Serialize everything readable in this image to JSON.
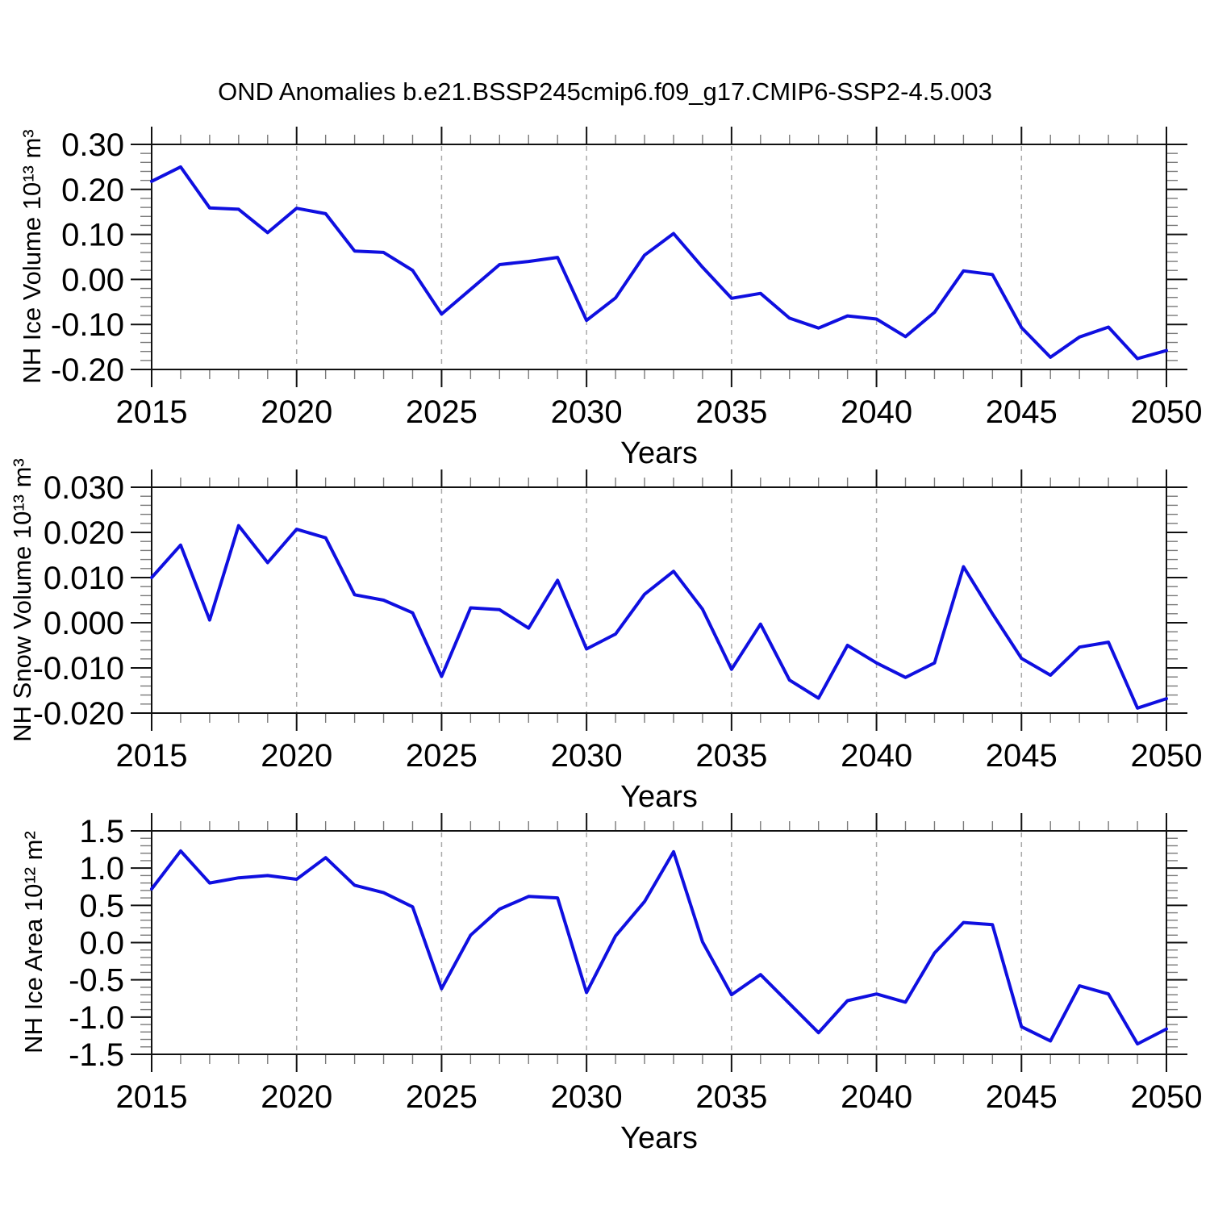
{
  "figure": {
    "title": "OND Anomalies b.e21.BSSP245cmip6.f09_g17.CMIP6-SSP2-4.5.003",
    "background_color": "#ffffff",
    "line_color": "#0f0fe0",
    "grid_color": "#a9a9a9"
  },
  "chart_data": [
    {
      "type": "line",
      "ylabel": "NH Ice Volume 10¹³ m³",
      "xlabel": "Years",
      "xlim": [
        2015,
        2050
      ],
      "ylim": [
        -0.2,
        0.3
      ],
      "grid": "vertical-dashed",
      "legend": "none",
      "grid_x": [
        2020,
        2025,
        2030,
        2035,
        2040,
        2045
      ],
      "xtick_major": [
        2015,
        2020,
        2025,
        2030,
        2035,
        2040,
        2045,
        2050
      ],
      "xtick_labels": [
        "2015",
        "2020",
        "2025",
        "2030",
        "2035",
        "2040",
        "2045",
        "2050"
      ],
      "xtick_minor_step": 1,
      "ytick_major": [
        0.3,
        0.2,
        0.1,
        0.0,
        -0.1,
        -0.2
      ],
      "ytick_labels": [
        "0.30",
        "0.20",
        "0.10",
        "0.00",
        "-0.10",
        "-0.20"
      ],
      "ytick_minor_step": 0.02,
      "x": [
        2015,
        2016,
        2017,
        2018,
        2019,
        2020,
        2021,
        2022,
        2023,
        2024,
        2025,
        2026,
        2027,
        2028,
        2029,
        2030,
        2031,
        2032,
        2033,
        2034,
        2035,
        2036,
        2037,
        2038,
        2039,
        2040,
        2041,
        2042,
        2043,
        2044,
        2045,
        2046,
        2047,
        2048,
        2049,
        2050
      ],
      "values": [
        0.218,
        0.25,
        0.159,
        0.156,
        0.104,
        0.158,
        0.146,
        0.063,
        0.06,
        0.02,
        -0.077,
        -0.022,
        0.033,
        0.04,
        0.049,
        -0.091,
        -0.041,
        0.054,
        0.102,
        0.027,
        -0.042,
        -0.031,
        -0.086,
        -0.108,
        -0.081,
        -0.088,
        -0.127,
        -0.073,
        0.019,
        0.011,
        -0.107,
        -0.173,
        -0.128,
        -0.106,
        -0.176,
        -0.158
      ]
    },
    {
      "type": "line",
      "ylabel": "NH Snow Volume 10¹³ m³",
      "xlabel": "Years",
      "xlim": [
        2015,
        2050
      ],
      "ylim": [
        -0.02,
        0.03
      ],
      "grid": "vertical-dashed",
      "legend": "none",
      "grid_x": [
        2020,
        2025,
        2030,
        2035,
        2040,
        2045
      ],
      "xtick_major": [
        2015,
        2020,
        2025,
        2030,
        2035,
        2040,
        2045,
        2050
      ],
      "xtick_labels": [
        "2015",
        "2020",
        "2025",
        "2030",
        "2035",
        "2040",
        "2045",
        "2050"
      ],
      "xtick_minor_step": 1,
      "ytick_major": [
        0.03,
        0.02,
        0.01,
        0.0,
        -0.01,
        -0.02
      ],
      "ytick_labels": [
        "0.030",
        "0.020",
        "0.010",
        "0.000",
        "-0.010",
        "-0.020"
      ],
      "ytick_minor_step": 0.002,
      "x": [
        2015,
        2016,
        2017,
        2018,
        2019,
        2020,
        2021,
        2022,
        2023,
        2024,
        2025,
        2026,
        2027,
        2028,
        2029,
        2030,
        2031,
        2032,
        2033,
        2034,
        2035,
        2036,
        2037,
        2038,
        2039,
        2040,
        2041,
        2042,
        2043,
        2044,
        2045,
        2046,
        2047,
        2048,
        2049,
        2050
      ],
      "values": [
        0.01,
        0.0172,
        0.0006,
        0.0215,
        0.0133,
        0.0207,
        0.0188,
        0.0062,
        0.005,
        0.0022,
        -0.0119,
        0.0033,
        0.0029,
        -0.0012,
        0.0094,
        -0.0058,
        -0.0025,
        0.0063,
        0.0114,
        0.003,
        -0.0103,
        -0.0003,
        -0.0127,
        -0.0167,
        -0.005,
        -0.0089,
        -0.0121,
        -0.0089,
        0.0124,
        0.002,
        -0.0079,
        -0.0116,
        -0.0054,
        -0.0043,
        -0.0189,
        -0.0168
      ]
    },
    {
      "type": "line",
      "ylabel": "NH Ice Area 10¹² m²",
      "xlabel": "Years",
      "xlim": [
        2015,
        2050
      ],
      "ylim": [
        -1.5,
        1.5
      ],
      "grid": "vertical-dashed",
      "legend": "none",
      "grid_x": [
        2020,
        2025,
        2030,
        2035,
        2040,
        2045
      ],
      "xtick_major": [
        2015,
        2020,
        2025,
        2030,
        2035,
        2040,
        2045,
        2050
      ],
      "xtick_labels": [
        "2015",
        "2020",
        "2025",
        "2030",
        "2035",
        "2040",
        "2045",
        "2050"
      ],
      "xtick_minor_step": 1,
      "ytick_major": [
        1.5,
        1.0,
        0.5,
        0.0,
        -0.5,
        -1.0,
        -1.5
      ],
      "ytick_labels": [
        "1.5",
        "1.0",
        "0.5",
        "0.0",
        "-0.5",
        "-1.0",
        "-1.5"
      ],
      "ytick_minor_step": 0.1,
      "x": [
        2015,
        2016,
        2017,
        2018,
        2019,
        2020,
        2021,
        2022,
        2023,
        2024,
        2025,
        2026,
        2027,
        2028,
        2029,
        2030,
        2031,
        2032,
        2033,
        2034,
        2035,
        2036,
        2037,
        2038,
        2039,
        2040,
        2041,
        2042,
        2043,
        2044,
        2045,
        2046,
        2047,
        2048,
        2049,
        2050
      ],
      "values": [
        0.72,
        1.23,
        0.8,
        0.87,
        0.9,
        0.85,
        1.14,
        0.77,
        0.67,
        0.48,
        -0.62,
        0.1,
        0.45,
        0.62,
        0.6,
        -0.67,
        0.09,
        0.55,
        1.22,
        0.01,
        -0.7,
        -0.43,
        -0.82,
        -1.21,
        -0.78,
        -0.69,
        -0.8,
        -0.14,
        0.27,
        0.24,
        -1.13,
        -1.32,
        -0.58,
        -0.69,
        -1.36,
        -1.16
      ]
    }
  ]
}
